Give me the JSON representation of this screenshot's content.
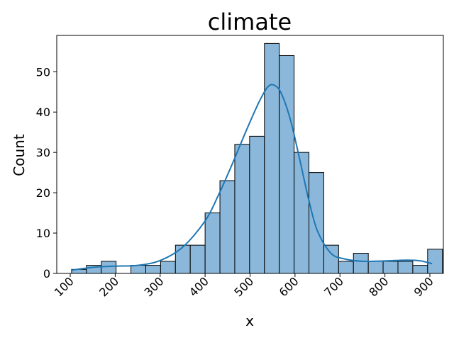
{
  "chart_data": {
    "type": "bar",
    "title": "climate",
    "xlabel": "x",
    "ylabel": "Count",
    "xlim": [
      70,
      930
    ],
    "ylim": [
      0,
      59
    ],
    "xticks": [
      100,
      200,
      300,
      400,
      500,
      600,
      700,
      800,
      900
    ],
    "yticks": [
      0,
      10,
      20,
      30,
      40,
      50
    ],
    "xtick_rotation": 45,
    "grid": false,
    "bar_color": "#8BB8DA",
    "edge_color": "#000000",
    "kde_color": "#1F77B4",
    "bins": [
      {
        "start": 103,
        "end": 136,
        "count": 1
      },
      {
        "start": 136,
        "end": 169,
        "count": 2
      },
      {
        "start": 169,
        "end": 202,
        "count": 3
      },
      {
        "start": 202,
        "end": 235,
        "count": 0
      },
      {
        "start": 235,
        "end": 268,
        "count": 2
      },
      {
        "start": 268,
        "end": 301,
        "count": 2
      },
      {
        "start": 301,
        "end": 334,
        "count": 3
      },
      {
        "start": 334,
        "end": 367,
        "count": 7
      },
      {
        "start": 367,
        "end": 400,
        "count": 7
      },
      {
        "start": 400,
        "end": 433,
        "count": 15
      },
      {
        "start": 433,
        "end": 466,
        "count": 23
      },
      {
        "start": 466,
        "end": 499,
        "count": 32
      },
      {
        "start": 499,
        "end": 532,
        "count": 34
      },
      {
        "start": 532,
        "end": 565,
        "count": 57
      },
      {
        "start": 565,
        "end": 598,
        "count": 54
      },
      {
        "start": 598,
        "end": 631,
        "count": 30
      },
      {
        "start": 631,
        "end": 664,
        "count": 25
      },
      {
        "start": 664,
        "end": 697,
        "count": 7
      },
      {
        "start": 697,
        "end": 730,
        "count": 3
      },
      {
        "start": 730,
        "end": 763,
        "count": 5
      },
      {
        "start": 763,
        "end": 796,
        "count": 3
      },
      {
        "start": 796,
        "end": 829,
        "count": 3
      },
      {
        "start": 829,
        "end": 862,
        "count": 3
      },
      {
        "start": 862,
        "end": 895,
        "count": 2
      },
      {
        "start": 895,
        "end": 928,
        "count": 6
      }
    ],
    "kde": {
      "x": [
        103,
        150,
        200,
        250,
        300,
        350,
        400,
        430,
        460,
        490,
        520,
        540,
        555,
        570,
        590,
        610,
        630,
        650,
        680,
        710,
        750,
        800,
        850,
        880,
        905
      ],
      "y": [
        0.8,
        1.5,
        1.8,
        2.0,
        3.2,
        6.5,
        13.0,
        19.5,
        27.0,
        35.0,
        42.5,
        46.3,
        46.6,
        44.5,
        38.0,
        28.5,
        18.5,
        10.5,
        5.0,
        3.6,
        3.0,
        3.1,
        3.3,
        3.1,
        2.4
      ]
    }
  }
}
